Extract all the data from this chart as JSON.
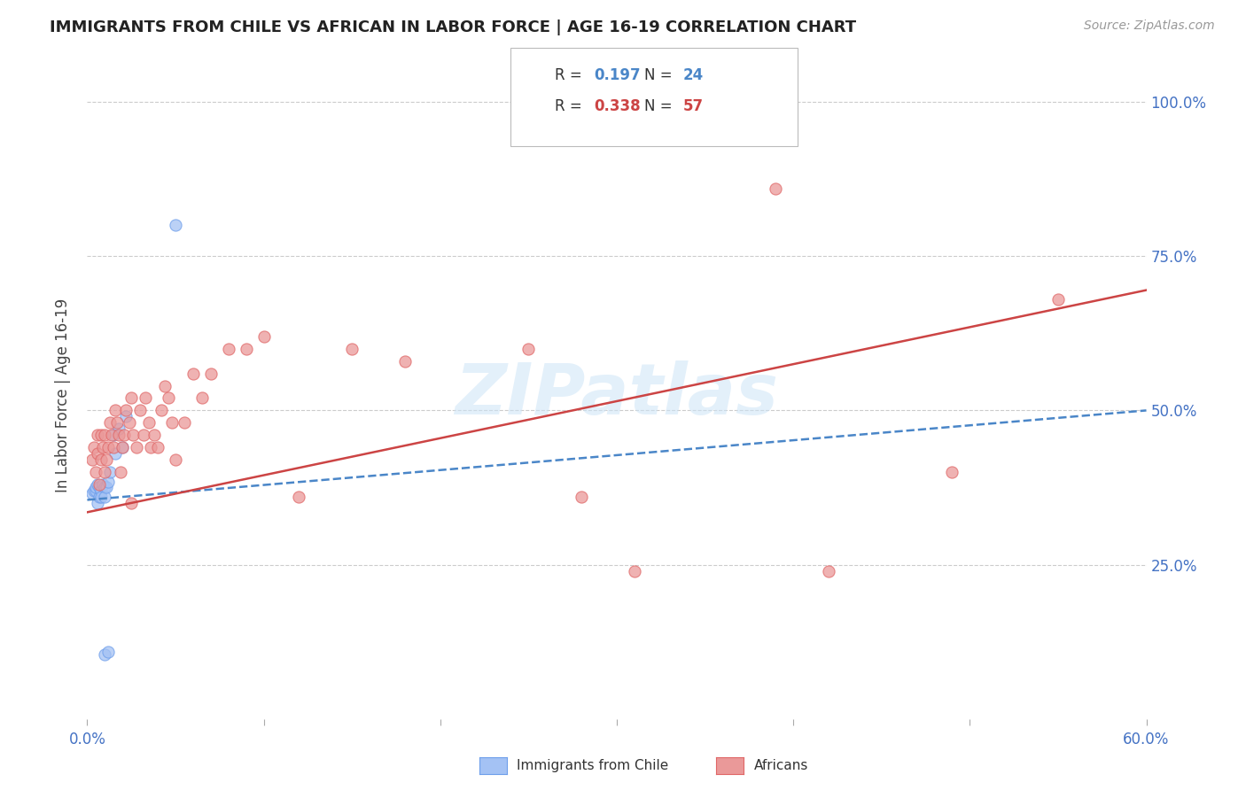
{
  "title": "IMMIGRANTS FROM CHILE VS AFRICAN IN LABOR FORCE | AGE 16-19 CORRELATION CHART",
  "source": "Source: ZipAtlas.com",
  "ylabel": "In Labor Force | Age 16-19",
  "x_min": 0.0,
  "x_max": 0.6,
  "y_min": 0.0,
  "y_max": 1.05,
  "color_chile": "#a4c2f4",
  "color_chile_dark": "#6d9eeb",
  "color_chile_line": "#4a86c8",
  "color_african": "#ea9999",
  "color_african_dark": "#e06666",
  "color_african_line": "#cc4444",
  "color_right_axis": "#4472c4",
  "color_xtick": "#4472c4",
  "watermark": "ZIPatlas",
  "background_color": "#ffffff",
  "grid_color": "#cccccc",
  "chile_x": [
    0.003,
    0.004,
    0.005,
    0.005,
    0.006,
    0.006,
    0.007,
    0.007,
    0.008,
    0.008,
    0.009,
    0.01,
    0.01,
    0.011,
    0.012,
    0.013,
    0.015,
    0.016,
    0.018,
    0.02,
    0.022,
    0.05,
    0.01,
    0.012
  ],
  "chile_y": [
    0.365,
    0.37,
    0.37,
    0.375,
    0.35,
    0.38,
    0.36,
    0.375,
    0.37,
    0.36,
    0.38,
    0.375,
    0.36,
    0.375,
    0.385,
    0.4,
    0.46,
    0.43,
    0.47,
    0.44,
    0.49,
    0.8,
    0.105,
    0.108
  ],
  "african_x": [
    0.003,
    0.004,
    0.005,
    0.006,
    0.006,
    0.007,
    0.008,
    0.008,
    0.009,
    0.01,
    0.01,
    0.011,
    0.012,
    0.013,
    0.014,
    0.015,
    0.016,
    0.017,
    0.018,
    0.019,
    0.02,
    0.021,
    0.022,
    0.024,
    0.025,
    0.026,
    0.028,
    0.03,
    0.032,
    0.033,
    0.035,
    0.036,
    0.038,
    0.04,
    0.042,
    0.044,
    0.046,
    0.048,
    0.05,
    0.055,
    0.06,
    0.065,
    0.07,
    0.08,
    0.09,
    0.1,
    0.12,
    0.15,
    0.18,
    0.25,
    0.28,
    0.31,
    0.39,
    0.42,
    0.49,
    0.55,
    0.025
  ],
  "african_y": [
    0.42,
    0.44,
    0.4,
    0.46,
    0.43,
    0.38,
    0.42,
    0.46,
    0.44,
    0.46,
    0.4,
    0.42,
    0.44,
    0.48,
    0.46,
    0.44,
    0.5,
    0.48,
    0.46,
    0.4,
    0.44,
    0.46,
    0.5,
    0.48,
    0.52,
    0.46,
    0.44,
    0.5,
    0.46,
    0.52,
    0.48,
    0.44,
    0.46,
    0.44,
    0.5,
    0.54,
    0.52,
    0.48,
    0.42,
    0.48,
    0.56,
    0.52,
    0.56,
    0.6,
    0.6,
    0.62,
    0.36,
    0.6,
    0.58,
    0.6,
    0.36,
    0.24,
    0.86,
    0.24,
    0.4,
    0.68,
    0.35
  ],
  "figsize": [
    14.06,
    8.92
  ],
  "dpi": 100,
  "chile_R": "0.197",
  "chile_N": "24",
  "african_R": "0.338",
  "african_N": "57",
  "chile_line_x0": 0.0,
  "chile_line_x1": 0.6,
  "chile_line_y0": 0.355,
  "chile_line_y1": 0.5,
  "african_line_x0": 0.0,
  "african_line_x1": 0.6,
  "african_line_y0": 0.335,
  "african_line_y1": 0.695
}
